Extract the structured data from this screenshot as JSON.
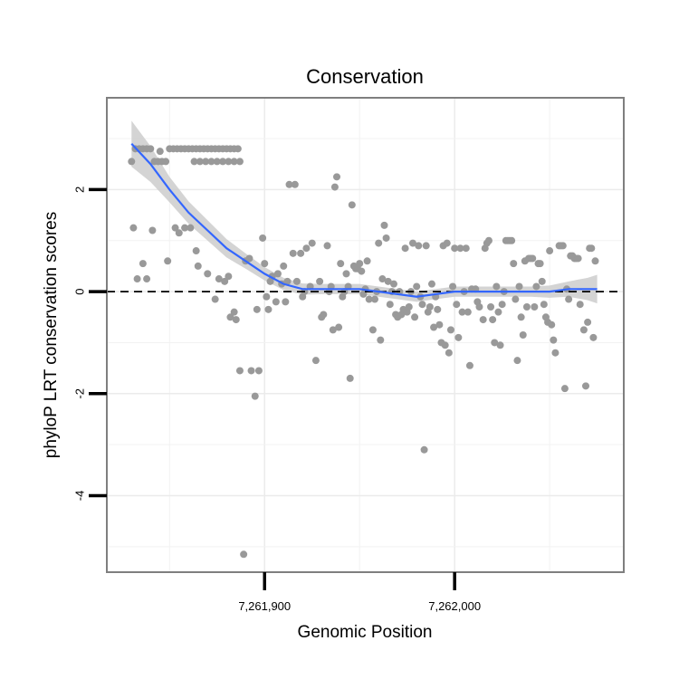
{
  "chart_data": {
    "type": "scatter",
    "title": "Conservation",
    "xlabel": "Genomic Position",
    "ylabel": "phyloP LRT conservation scores",
    "xlim": [
      7261817,
      7262089
    ],
    "ylim": [
      -5.5,
      3.8
    ],
    "x_ticks": [
      7261900,
      7262000
    ],
    "x_tick_labels": [
      "7,261,900",
      "7,262,000"
    ],
    "y_ticks": [
      -4,
      -2,
      0,
      2
    ],
    "y_tick_labels": [
      "-4",
      "-2",
      "0",
      "2"
    ],
    "reference_line": {
      "y": 0,
      "style": "dashed"
    },
    "grid": true,
    "point_color": "#999999",
    "smooth_color": "#3366ff",
    "band_color": "#cccccc",
    "points": [
      [
        7261830,
        2.55
      ],
      [
        7261832,
        2.8
      ],
      [
        7261834,
        2.8
      ],
      [
        7261836,
        2.8
      ],
      [
        7261838,
        2.8
      ],
      [
        7261840,
        2.8
      ],
      [
        7261842,
        2.55
      ],
      [
        7261844,
        2.55
      ],
      [
        7261846,
        2.55
      ],
      [
        7261848,
        2.55
      ],
      [
        7261850,
        2.8
      ],
      [
        7261852,
        2.8
      ],
      [
        7261854,
        2.8
      ],
      [
        7261856,
        2.8
      ],
      [
        7261858,
        2.8
      ],
      [
        7261860,
        2.8
      ],
      [
        7261862,
        2.8
      ],
      [
        7261864,
        2.8
      ],
      [
        7261866,
        2.8
      ],
      [
        7261868,
        2.8
      ],
      [
        7261870,
        2.8
      ],
      [
        7261872,
        2.8
      ],
      [
        7261874,
        2.8
      ],
      [
        7261876,
        2.8
      ],
      [
        7261878,
        2.8
      ],
      [
        7261880,
        2.8
      ],
      [
        7261882,
        2.8
      ],
      [
        7261884,
        2.8
      ],
      [
        7261886,
        2.8
      ],
      [
        7261863,
        2.55
      ],
      [
        7261866,
        2.55
      ],
      [
        7261869,
        2.55
      ],
      [
        7261872,
        2.55
      ],
      [
        7261875,
        2.55
      ],
      [
        7261878,
        2.55
      ],
      [
        7261881,
        2.55
      ],
      [
        7261884,
        2.55
      ],
      [
        7261887,
        2.55
      ],
      [
        7261831,
        1.25
      ],
      [
        7261833,
        0.25
      ],
      [
        7261836,
        0.55
      ],
      [
        7261838,
        0.25
      ],
      [
        7261841,
        1.2
      ],
      [
        7261845,
        2.75
      ],
      [
        7261849,
        0.6
      ],
      [
        7261853,
        1.25
      ],
      [
        7261855,
        1.15
      ],
      [
        7261858,
        1.25
      ],
      [
        7261861,
        1.25
      ],
      [
        7261864,
        0.8
      ],
      [
        7261865,
        0.5
      ],
      [
        7261870,
        0.35
      ],
      [
        7261874,
        -0.15
      ],
      [
        7261876,
        0.25
      ],
      [
        7261879,
        0.2
      ],
      [
        7261881,
        0.3
      ],
      [
        7261882,
        -0.5
      ],
      [
        7261884,
        -0.4
      ],
      [
        7261885,
        -0.55
      ],
      [
        7261887,
        -1.55
      ],
      [
        7261889,
        -5.15
      ],
      [
        7261890,
        0.6
      ],
      [
        7261892,
        0.65
      ],
      [
        7261893,
        -1.55
      ],
      [
        7261895,
        -2.05
      ],
      [
        7261896,
        -0.35
      ],
      [
        7261897,
        -1.55
      ],
      [
        7261899,
        1.05
      ],
      [
        7261900,
        0.55
      ],
      [
        7261901,
        -0.1
      ],
      [
        7261902,
        -0.35
      ],
      [
        7261903,
        0.2
      ],
      [
        7261904,
        0.3
      ],
      [
        7261906,
        -0.2
      ],
      [
        7261907,
        0.35
      ],
      [
        7261909,
        0.15
      ],
      [
        7261910,
        0.5
      ],
      [
        7261911,
        -0.2
      ],
      [
        7261912,
        0.2
      ],
      [
        7261913,
        2.1
      ],
      [
        7261915,
        0.75
      ],
      [
        7261916,
        2.1
      ],
      [
        7261917,
        0.2
      ],
      [
        7261919,
        0.75
      ],
      [
        7261920,
        -0.1
      ],
      [
        7261921,
        0.0
      ],
      [
        7261922,
        0.85
      ],
      [
        7261924,
        0.1
      ],
      [
        7261925,
        0.95
      ],
      [
        7261927,
        -1.35
      ],
      [
        7261929,
        0.2
      ],
      [
        7261930,
        -0.5
      ],
      [
        7261931,
        -0.45
      ],
      [
        7261933,
        0.9
      ],
      [
        7261934,
        0.0
      ],
      [
        7261935,
        0.1
      ],
      [
        7261936,
        -0.75
      ],
      [
        7261937,
        2.05
      ],
      [
        7261938,
        2.25
      ],
      [
        7261939,
        -0.7
      ],
      [
        7261940,
        0.55
      ],
      [
        7261941,
        -0.1
      ],
      [
        7261942,
        0.0
      ],
      [
        7261943,
        0.35
      ],
      [
        7261944,
        0.1
      ],
      [
        7261945,
        -1.7
      ],
      [
        7261946,
        1.7
      ],
      [
        7261947,
        0.5
      ],
      [
        7261948,
        0.45
      ],
      [
        7261949,
        0.45
      ],
      [
        7261950,
        0.55
      ],
      [
        7261951,
        0.4
      ],
      [
        7261952,
        -0.05
      ],
      [
        7261953,
        0.05
      ],
      [
        7261954,
        0.6
      ],
      [
        7261955,
        -0.15
      ],
      [
        7261957,
        -0.75
      ],
      [
        7261958,
        -0.15
      ],
      [
        7261959,
        0.0
      ],
      [
        7261960,
        0.95
      ],
      [
        7261961,
        -0.95
      ],
      [
        7261962,
        0.25
      ],
      [
        7261963,
        1.3
      ],
      [
        7261964,
        1.05
      ],
      [
        7261965,
        0.2
      ],
      [
        7261966,
        -0.25
      ],
      [
        7261967,
        0.0
      ],
      [
        7261968,
        0.15
      ],
      [
        7261969,
        -0.45
      ],
      [
        7261970,
        -0.5
      ],
      [
        7261971,
        0.0
      ],
      [
        7261972,
        -0.45
      ],
      [
        7261973,
        -0.35
      ],
      [
        7261974,
        0.85
      ],
      [
        7261975,
        -0.4
      ],
      [
        7261976,
        -0.3
      ],
      [
        7261977,
        0.0
      ],
      [
        7261978,
        0.95
      ],
      [
        7261979,
        -0.5
      ],
      [
        7261980,
        0.1
      ],
      [
        7261981,
        0.9
      ],
      [
        7261982,
        -0.1
      ],
      [
        7261983,
        -0.25
      ],
      [
        7261984,
        -3.1
      ],
      [
        7261985,
        0.9
      ],
      [
        7261986,
        -0.4
      ],
      [
        7261987,
        -0.3
      ],
      [
        7261988,
        0.15
      ],
      [
        7261989,
        -0.7
      ],
      [
        7261990,
        -0.1
      ],
      [
        7261991,
        -0.35
      ],
      [
        7261992,
        -0.65
      ],
      [
        7261993,
        -1.0
      ],
      [
        7261994,
        0.9
      ],
      [
        7261995,
        -1.05
      ],
      [
        7261996,
        0.95
      ],
      [
        7261997,
        -1.2
      ],
      [
        7261998,
        -0.75
      ],
      [
        7261999,
        0.1
      ],
      [
        7262000,
        0.85
      ],
      [
        7262001,
        -0.25
      ],
      [
        7262002,
        -0.9
      ],
      [
        7262003,
        0.85
      ],
      [
        7262004,
        -0.4
      ],
      [
        7262005,
        0.0
      ],
      [
        7262006,
        0.85
      ],
      [
        7262007,
        -0.4
      ],
      [
        7262008,
        -1.45
      ],
      [
        7262009,
        0.05
      ],
      [
        7262011,
        0.05
      ],
      [
        7262012,
        -0.2
      ],
      [
        7262013,
        -0.3
      ],
      [
        7262015,
        -0.55
      ],
      [
        7262016,
        0.85
      ],
      [
        7262017,
        0.95
      ],
      [
        7262018,
        1.0
      ],
      [
        7262019,
        -0.3
      ],
      [
        7262020,
        -0.55
      ],
      [
        7262021,
        -1.0
      ],
      [
        7262022,
        0.1
      ],
      [
        7262023,
        -0.4
      ],
      [
        7262024,
        -1.05
      ],
      [
        7262025,
        -0.25
      ],
      [
        7262026,
        0.0
      ],
      [
        7262027,
        1.0
      ],
      [
        7262028,
        1.0
      ],
      [
        7262029,
        1.0
      ],
      [
        7262030,
        1.0
      ],
      [
        7262031,
        0.55
      ],
      [
        7262032,
        -0.15
      ],
      [
        7262033,
        -1.35
      ],
      [
        7262034,
        0.1
      ],
      [
        7262035,
        -0.5
      ],
      [
        7262036,
        -0.85
      ],
      [
        7262037,
        0.6
      ],
      [
        7262038,
        -0.3
      ],
      [
        7262039,
        0.65
      ],
      [
        7262040,
        0.65
      ],
      [
        7262041,
        0.65
      ],
      [
        7262042,
        -0.3
      ],
      [
        7262043,
        0.1
      ],
      [
        7262044,
        0.55
      ],
      [
        7262045,
        0.55
      ],
      [
        7262046,
        0.2
      ],
      [
        7262047,
        -0.25
      ],
      [
        7262048,
        -0.5
      ],
      [
        7262049,
        -0.6
      ],
      [
        7262050,
        0.8
      ],
      [
        7262051,
        -0.65
      ],
      [
        7262052,
        -0.95
      ],
      [
        7262053,
        -1.2
      ],
      [
        7262055,
        0.9
      ],
      [
        7262056,
        0.9
      ],
      [
        7262057,
        0.9
      ],
      [
        7262058,
        -1.9
      ],
      [
        7262059,
        0.05
      ],
      [
        7262060,
        -0.15
      ],
      [
        7262061,
        0.7
      ],
      [
        7262062,
        0.7
      ],
      [
        7262063,
        0.65
      ],
      [
        7262064,
        0.65
      ],
      [
        7262065,
        0.65
      ],
      [
        7262066,
        -0.25
      ],
      [
        7262068,
        -0.75
      ],
      [
        7262069,
        -1.85
      ],
      [
        7262070,
        -0.6
      ],
      [
        7262071,
        0.85
      ],
      [
        7262072,
        0.85
      ],
      [
        7262073,
        -0.9
      ],
      [
        7262074,
        0.6
      ]
    ],
    "smooth_fit": [
      [
        7261830,
        2.9
      ],
      [
        7261840,
        2.5
      ],
      [
        7261850,
        2.0
      ],
      [
        7261860,
        1.55
      ],
      [
        7261870,
        1.2
      ],
      [
        7261880,
        0.85
      ],
      [
        7261890,
        0.6
      ],
      [
        7261900,
        0.35
      ],
      [
        7261910,
        0.15
      ],
      [
        7261920,
        0.05
      ],
      [
        7261930,
        0.05
      ],
      [
        7261940,
        0.05
      ],
      [
        7261950,
        0.05
      ],
      [
        7261960,
        0.0
      ],
      [
        7261970,
        -0.05
      ],
      [
        7261980,
        -0.1
      ],
      [
        7261990,
        -0.05
      ],
      [
        7262000,
        0.0
      ],
      [
        7262010,
        0.0
      ],
      [
        7262020,
        0.0
      ],
      [
        7262030,
        0.0
      ],
      [
        7262040,
        0.0
      ],
      [
        7262050,
        0.0
      ],
      [
        7262060,
        0.05
      ],
      [
        7262070,
        0.05
      ],
      [
        7262075,
        0.05
      ]
    ],
    "band_halfwidth": [
      0.45,
      0.35,
      0.25,
      0.22,
      0.2,
      0.18,
      0.15,
      0.13,
      0.12,
      0.11,
      0.1,
      0.1,
      0.1,
      0.1,
      0.1,
      0.1,
      0.1,
      0.1,
      0.1,
      0.1,
      0.1,
      0.1,
      0.12,
      0.15,
      0.22,
      0.28
    ]
  }
}
